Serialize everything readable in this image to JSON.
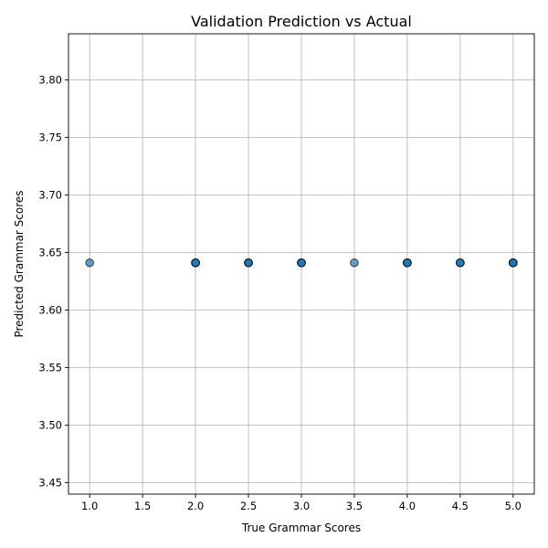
{
  "chart_data": {
    "type": "scatter",
    "title": "Validation Prediction vs Actual",
    "xlabel": "True Grammar Scores",
    "ylabel": "Predicted Grammar Scores",
    "xlim": [
      0.8,
      5.2
    ],
    "ylim": [
      3.44,
      3.84
    ],
    "xticks": [
      "1.0",
      "1.5",
      "2.0",
      "2.5",
      "3.0",
      "3.5",
      "4.0",
      "4.5",
      "5.0"
    ],
    "yticks": [
      "3.45",
      "3.50",
      "3.55",
      "3.60",
      "3.65",
      "3.70",
      "3.75",
      "3.80"
    ],
    "grid": true,
    "colors": {
      "marker_fill": "#1f77b4",
      "marker_edge": "#000000",
      "marker_alpha": 0.7
    },
    "points": [
      {
        "x": 1.0,
        "y": 3.641
      },
      {
        "x": 2.0,
        "y": 3.641
      },
      {
        "x": 2.0,
        "y": 3.641
      },
      {
        "x": 2.0,
        "y": 3.641
      },
      {
        "x": 2.0,
        "y": 3.641
      },
      {
        "x": 2.5,
        "y": 3.641
      },
      {
        "x": 2.5,
        "y": 3.641
      },
      {
        "x": 2.5,
        "y": 3.641
      },
      {
        "x": 2.5,
        "y": 3.641
      },
      {
        "x": 3.0,
        "y": 3.641
      },
      {
        "x": 3.0,
        "y": 3.641
      },
      {
        "x": 3.0,
        "y": 3.641
      },
      {
        "x": 3.0,
        "y": 3.641
      },
      {
        "x": 3.5,
        "y": 3.641
      },
      {
        "x": 4.0,
        "y": 3.641
      },
      {
        "x": 4.0,
        "y": 3.641
      },
      {
        "x": 4.0,
        "y": 3.641
      },
      {
        "x": 4.0,
        "y": 3.641
      },
      {
        "x": 4.5,
        "y": 3.641
      },
      {
        "x": 4.5,
        "y": 3.641
      },
      {
        "x": 4.5,
        "y": 3.641
      },
      {
        "x": 5.0,
        "y": 3.641
      },
      {
        "x": 5.0,
        "y": 3.641
      },
      {
        "x": 5.0,
        "y": 3.641
      },
      {
        "x": 5.0,
        "y": 3.641
      },
      {
        "x": 5.0,
        "y": 3.641
      }
    ]
  }
}
